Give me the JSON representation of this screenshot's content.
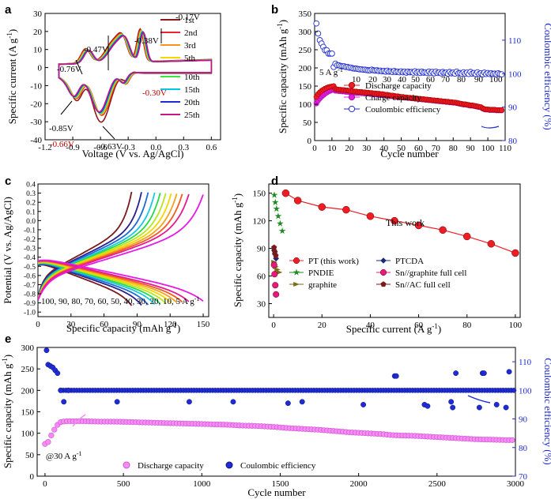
{
  "chart_data": [
    {
      "id": "a",
      "type": "line",
      "panel_letter": "a",
      "xlabel": "Voltage (V vs. Ag/AgCl)",
      "ylabel": "Specific current (A g",
      "ylabel_sup": "-1",
      "ylabel_end": ")",
      "xlim": [
        -1.2,
        0.7
      ],
      "ylim": [
        -40,
        30
      ],
      "xticks": [
        -1.2,
        -0.9,
        -0.6,
        -0.3,
        0.0,
        0.3,
        0.6
      ],
      "xtick_labels": [
        "-1.2",
        "-0.9",
        "-0.6",
        "-0.3",
        "0.0",
        "0.3",
        "0.6"
      ],
      "yticks": [
        -40,
        -30,
        -20,
        -10,
        0,
        10,
        20,
        30
      ],
      "ytick_labels": [
        "-40",
        "-30",
        "-20",
        "-10",
        "0",
        "10",
        "20",
        "30"
      ],
      "legend_title": "",
      "series": [
        {
          "name": "1st",
          "color": "#8b1a1a",
          "scale": 1.0,
          "first": true
        },
        {
          "name": "2nd",
          "color": "#e8262b",
          "scale": 0.98
        },
        {
          "name": "3rd",
          "color": "#f7941d",
          "scale": 0.96
        },
        {
          "name": "5th",
          "color": "#f5d800",
          "scale": 0.95
        },
        {
          "name": "10th",
          "color": "#39e639",
          "scale": 0.94
        },
        {
          "name": "15th",
          "color": "#00c8e6",
          "scale": 0.93
        },
        {
          "name": "20th",
          "color": "#1f2bd4",
          "scale": 0.92
        },
        {
          "name": "25th",
          "color": "#c71585",
          "scale": 0.91
        }
      ],
      "annotations": [
        {
          "text": "-0.17V",
          "color": "#000000"
        },
        {
          "text": "-0.38V",
          "color": "#000000"
        },
        {
          "text": "-0.47V",
          "color": "#000000"
        },
        {
          "text": "-0.76V",
          "color": "#000000"
        },
        {
          "text": "-0.85V",
          "color": "#000000"
        },
        {
          "text": "-0.66V",
          "color": "#c00000"
        },
        {
          "text": "-0.63V",
          "color": "#000000"
        },
        {
          "text": "-0.30V",
          "color": "#c00000"
        }
      ]
    },
    {
      "id": "b",
      "type": "scatter",
      "panel_letter": "b",
      "xlabel": "Cycle number",
      "ylabel": "Specific capacity (mAh g",
      "ylabel_sup": "-1",
      "ylabel_end": ")",
      "y2label": "Coulombic efficiency (%)",
      "xlim": [
        0,
        110
      ],
      "ylim": [
        0,
        350
      ],
      "y2lim": [
        80,
        118
      ],
      "xticks": [
        0,
        10,
        20,
        30,
        40,
        50,
        60,
        70,
        80,
        90,
        100,
        110
      ],
      "yticks": [
        0,
        50,
        100,
        150,
        200,
        250,
        300,
        350
      ],
      "y2ticks": [
        80,
        90,
        100,
        110
      ],
      "rate_labels": [
        "5 A g",
        "10",
        "20",
        "30",
        "40",
        "50",
        "60",
        "70",
        "80",
        "90",
        "100"
      ],
      "rate_label_sup": "-1",
      "legend": [
        "Discharge capacity",
        "Charge capacity",
        "Coulombic efficiency"
      ],
      "discharge": [
        120,
        128,
        133,
        137,
        140,
        143,
        145,
        147,
        148,
        149,
        150,
        142,
        141,
        140,
        140,
        139,
        139,
        138,
        138,
        137,
        136,
        136,
        135,
        135,
        134,
        134,
        134,
        133,
        133,
        132,
        132,
        131,
        131,
        130,
        130,
        129,
        129,
        128,
        128,
        127,
        126,
        126,
        125,
        124,
        124,
        123,
        122,
        122,
        121,
        120,
        120,
        119,
        119,
        118,
        118,
        117,
        117,
        116,
        116,
        115,
        115,
        114,
        114,
        113,
        113,
        112,
        112,
        111,
        111,
        110,
        110,
        109,
        109,
        108,
        108,
        107,
        107,
        106,
        106,
        105,
        105,
        104,
        103,
        102,
        101,
        100,
        100,
        99,
        98,
        97,
        97,
        96,
        95,
        94,
        93,
        92,
        89,
        87,
        86,
        86,
        85,
        85,
        85,
        85,
        84,
        84,
        84,
        84
      ],
      "charge": [
        102,
        110,
        116,
        121,
        125,
        129,
        132,
        135,
        137,
        139,
        140,
        137,
        137,
        136,
        136,
        135,
        135,
        134,
        134,
        133,
        133,
        132,
        132,
        131,
        131,
        131,
        130,
        130,
        129,
        129,
        129,
        128,
        128,
        127,
        127,
        126,
        126,
        125,
        125,
        124,
        124,
        123,
        123,
        122,
        122,
        121,
        121,
        120,
        120,
        119,
        119,
        118,
        118,
        117,
        117,
        116,
        116,
        115,
        115,
        114,
        114,
        113,
        113,
        112,
        112,
        111,
        111,
        110,
        110,
        109,
        109,
        108,
        108,
        107,
        107,
        106,
        106,
        105,
        105,
        104,
        104,
        103,
        102,
        101,
        100,
        99,
        99,
        98,
        97,
        96,
        96,
        95,
        94,
        93,
        92,
        91,
        88,
        86,
        85,
        85,
        84,
        84,
        84,
        84,
        83,
        83,
        83,
        83
      ],
      "ce": [
        115,
        112,
        110,
        109,
        108,
        107,
        107,
        106,
        106,
        106,
        102,
        103,
        102.5,
        102.5,
        102.3,
        102.2,
        102.2,
        102,
        102,
        101.8,
        101.8,
        101.6,
        101.5,
        101.5,
        101.4,
        101.3,
        101.3,
        101.2,
        101.2,
        101.1,
        101,
        101,
        101.2,
        101,
        100.9,
        101,
        100.8,
        100.9,
        100.7,
        100.8,
        100.6,
        100.9,
        100.6,
        100.7,
        100.5,
        100.8,
        100.5,
        100.6,
        100.4,
        100.7,
        100.4,
        100.6,
        100.3,
        100.6,
        100.4,
        100.5,
        100.3,
        100.7,
        100.3,
        100.5,
        100.2,
        100.6,
        100.3,
        100.4,
        100.2,
        100.6,
        100.2,
        100.5,
        100.1,
        100.6,
        100.2,
        100.4,
        100.1,
        100.5,
        100.2,
        100.3,
        100.0,
        100.5,
        100.1,
        100.3,
        100.0,
        100.6,
        100.1,
        100.2,
        100.0,
        100.4,
        100.0,
        100.3,
        99.9,
        100.5,
        100.0,
        100.2,
        99.9,
        100.4,
        99.9,
        100.1,
        99.8,
        100.3,
        99.9,
        100.2,
        99.9,
        100.1,
        99.9,
        100.0,
        99.8,
        100.1,
        99.9,
        99.8
      ]
    },
    {
      "id": "c",
      "type": "line",
      "panel_letter": "c",
      "xlabel": "Specific capacity (mAh g",
      "xlabel_sup": "-1",
      "xlabel_end": ")",
      "ylabel": "Potential (V vs. Ag/AgCl)",
      "xlim": [
        0,
        155
      ],
      "ylim": [
        -1.05,
        0.4
      ],
      "xticks": [
        0,
        30,
        60,
        90,
        120,
        150
      ],
      "yticks": [
        -1.0,
        -0.9,
        -0.8,
        -0.7,
        -0.6,
        -0.5,
        -0.4,
        -0.3,
        -0.2,
        -0.1,
        0.0,
        0.1,
        0.2,
        0.3,
        0.4
      ],
      "ytick_labels": [
        "-1.0",
        "-0.9",
        "-0.8",
        "-0.7",
        "-0.6",
        "-0.5",
        "-0.4",
        "-0.3",
        "-0.2",
        "-0.1",
        "0.0",
        "0.1",
        "0.2",
        "0.3",
        "0.4"
      ],
      "rate_note": "100, 90, 80, 70, 60, 50, 40, 30, 20, 10, 5 A g",
      "rate_note_sup": "-1",
      "series": [
        {
          "rate": 100,
          "capacity": 85,
          "color": "#7b1a1a"
        },
        {
          "rate": 90,
          "capacity": 94,
          "color": "#2a1f8f"
        },
        {
          "rate": 80,
          "capacity": 100,
          "color": "#1f6bd4"
        },
        {
          "rate": 70,
          "capacity": 106,
          "color": "#18c9e0"
        },
        {
          "rate": 60,
          "capacity": 111,
          "color": "#27d84a"
        },
        {
          "rate": 50,
          "capacity": 116,
          "color": "#b6e61a"
        },
        {
          "rate": 40,
          "capacity": 121,
          "color": "#f2d600"
        },
        {
          "rate": 30,
          "capacity": 126,
          "color": "#f7a21d"
        },
        {
          "rate": 20,
          "capacity": 131,
          "color": "#f15a22"
        },
        {
          "rate": 10,
          "capacity": 137,
          "color": "#e61a8c"
        },
        {
          "rate": 5,
          "capacity": 150,
          "color": "#e61ae6"
        }
      ]
    },
    {
      "id": "d",
      "type": "scatter",
      "panel_letter": "d",
      "xlabel": "Specific current (A g",
      "xlabel_sup": "-1",
      "xlabel_end": ")",
      "ylabel": "Specific capacity (mAh g",
      "ylabel_sup": "-1",
      "ylabel_end": ")",
      "xlim": [
        -2,
        102
      ],
      "ylim": [
        15,
        160
      ],
      "xticks": [
        0,
        20,
        40,
        60,
        80,
        100
      ],
      "yticks": [
        30,
        60,
        90,
        120,
        150
      ],
      "annotation": "This work",
      "series": [
        {
          "name": "PT (this work)",
          "color": "#ee1c25",
          "marker": "circle",
          "line": true,
          "x": [
            5,
            10,
            20,
            30,
            40,
            50,
            60,
            70,
            80,
            90,
            100
          ],
          "y": [
            150,
            142,
            135,
            132,
            125,
            120,
            115,
            110,
            103,
            95,
            85
          ]
        },
        {
          "name": "PNDIE",
          "color": "#1e8a1e",
          "marker": "star",
          "line": false,
          "x": [
            0.3,
            0.7,
            1.2,
            1.9,
            2.7,
            3.6
          ],
          "y": [
            148,
            140,
            133,
            125,
            117,
            109
          ]
        },
        {
          "name": "graphite",
          "color": "#7a6a1a",
          "marker": "triangle",
          "line": false,
          "x": [
            0.3,
            0.9,
            1.6,
            2.4
          ],
          "y": [
            75,
            70,
            67,
            64
          ]
        },
        {
          "name": "PTCDA",
          "color": "#1a2a7a",
          "marker": "diamond",
          "line": false,
          "x": [
            0.2,
            0.5,
            1.0
          ],
          "y": [
            88,
            84,
            79
          ]
        },
        {
          "name": "Sn//graphite full cell",
          "color": "#e6197d",
          "marker": "circle",
          "line": false,
          "x": [
            0.2,
            0.4,
            0.7,
            1.0
          ],
          "y": [
            72,
            62,
            50,
            40
          ]
        },
        {
          "name": "Sn//AC full cell",
          "color": "#7a1a1a",
          "marker": "pentagon",
          "line": false,
          "x": [
            0.2,
            0.5,
            0.9
          ],
          "y": [
            91,
            86,
            82
          ]
        }
      ]
    },
    {
      "id": "e",
      "type": "scatter",
      "panel_letter": "e",
      "xlabel": "Cycle number",
      "ylabel": "Specific capacity (mAh g",
      "ylabel_sup": "-1",
      "ylabel_end": ")",
      "y2label": "Coulombic efficiency (%)",
      "xlim": [
        -50,
        3000
      ],
      "ylim": [
        0,
        300
      ],
      "y2lim": [
        70,
        115
      ],
      "xticks": [
        0,
        500,
        1000,
        1500,
        2000,
        2500,
        3000
      ],
      "yticks": [
        0,
        50,
        100,
        150,
        200,
        250,
        300
      ],
      "y2ticks": [
        70,
        80,
        90,
        100,
        110
      ],
      "rate_note": "@30 A g",
      "rate_note_sup": "-1",
      "legend": [
        "Discharge capacity",
        "Coulombic efficiency"
      ],
      "capacity_points": [
        [
          10,
          75
        ],
        [
          25,
          82
        ],
        [
          40,
          95
        ],
        [
          55,
          105
        ],
        [
          70,
          115
        ],
        [
          85,
          122
        ],
        [
          100,
          126
        ],
        [
          130,
          128
        ],
        [
          180,
          128
        ],
        [
          250,
          128
        ],
        [
          350,
          127
        ],
        [
          450,
          127
        ],
        [
          550,
          126
        ],
        [
          650,
          125
        ],
        [
          750,
          124
        ],
        [
          850,
          123
        ],
        [
          950,
          122
        ],
        [
          1050,
          121
        ],
        [
          1150,
          120
        ],
        [
          1250,
          118
        ],
        [
          1350,
          117
        ],
        [
          1450,
          115
        ],
        [
          1550,
          112
        ],
        [
          1650,
          110
        ],
        [
          1750,
          108
        ],
        [
          1850,
          105
        ],
        [
          1950,
          102
        ],
        [
          2050,
          100
        ],
        [
          2150,
          98
        ],
        [
          2200,
          96
        ],
        [
          2250,
          95
        ],
        [
          2350,
          94
        ],
        [
          2450,
          92
        ],
        [
          2550,
          90
        ],
        [
          2650,
          88
        ],
        [
          2750,
          86
        ],
        [
          2850,
          85
        ],
        [
          2950,
          84
        ],
        [
          2990,
          84
        ]
      ],
      "ce_points": [
        [
          10,
          114
        ],
        [
          20,
          109
        ],
        [
          35,
          108.5
        ],
        [
          50,
          108
        ],
        [
          65,
          107
        ],
        [
          80,
          106
        ],
        [
          100,
          100
        ],
        [
          150,
          100
        ],
        [
          1550,
          95.5
        ],
        [
          2030,
          95
        ],
        [
          2230,
          105
        ],
        [
          2240,
          105
        ],
        [
          2420,
          95
        ],
        [
          2440,
          94.5
        ],
        [
          2600,
          94
        ],
        [
          2620,
          106
        ],
        [
          2770,
          94
        ],
        [
          2790,
          106
        ],
        [
          2800,
          106
        ],
        [
          2880,
          95
        ],
        [
          2940,
          94
        ],
        [
          2960,
          106.5
        ],
        [
          120,
          96
        ],
        [
          460,
          96
        ],
        [
          920,
          96
        ],
        [
          1200,
          96
        ],
        [
          1640,
          96
        ],
        [
          2590,
          96
        ]
      ]
    }
  ]
}
